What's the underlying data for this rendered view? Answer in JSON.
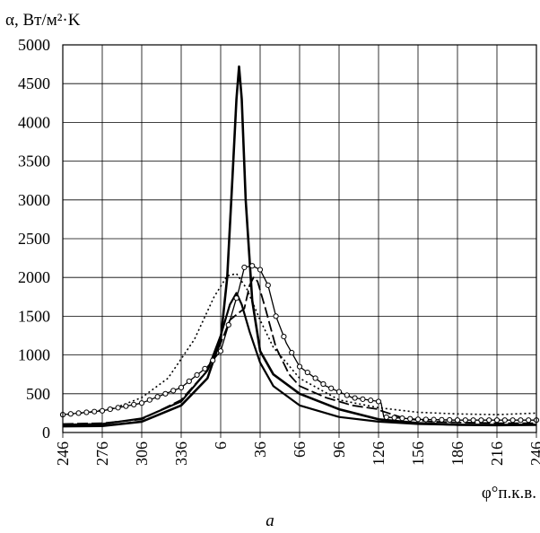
{
  "chart_data": {
    "type": "line",
    "ylabel": "α, Вт/м²·K",
    "xlabel": "φ°п.к.в.",
    "caption": "а",
    "ylim": [
      0,
      5000
    ],
    "yticks": [
      0,
      500,
      1000,
      1500,
      2000,
      2500,
      3000,
      3500,
      4000,
      4500,
      5000
    ],
    "xlim": [
      246,
      606
    ],
    "xticks": [
      {
        "value": 246,
        "label": "246"
      },
      {
        "value": 276,
        "label": "276"
      },
      {
        "value": 306,
        "label": "306"
      },
      {
        "value": 336,
        "label": "336"
      },
      {
        "value": 366,
        "label": "6"
      },
      {
        "value": 396,
        "label": "36"
      },
      {
        "value": 426,
        "label": "66"
      },
      {
        "value": 456,
        "label": "96"
      },
      {
        "value": 486,
        "label": "126"
      },
      {
        "value": 516,
        "label": "156"
      },
      {
        "value": 546,
        "label": "186"
      },
      {
        "value": 576,
        "label": "216"
      },
      {
        "value": 606,
        "label": "246"
      }
    ],
    "grid": true,
    "series": [
      {
        "style": "solid-thick-peak",
        "points": [
          [
            246,
            80
          ],
          [
            276,
            85
          ],
          [
            306,
            140
          ],
          [
            336,
            350
          ],
          [
            356,
            700
          ],
          [
            366,
            1200
          ],
          [
            371,
            2000
          ],
          [
            375,
            3300
          ],
          [
            378,
            4300
          ],
          [
            380,
            4720
          ],
          [
            382,
            4300
          ],
          [
            385,
            3000
          ],
          [
            390,
            1700
          ],
          [
            396,
            1050
          ],
          [
            406,
            750
          ],
          [
            426,
            500
          ],
          [
            456,
            300
          ],
          [
            486,
            170
          ],
          [
            516,
            120
          ],
          [
            546,
            100
          ],
          [
            576,
            95
          ],
          [
            606,
            100
          ]
        ]
      },
      {
        "style": "solid",
        "points": [
          [
            246,
            100
          ],
          [
            276,
            110
          ],
          [
            306,
            180
          ],
          [
            336,
            400
          ],
          [
            356,
            800
          ],
          [
            366,
            1250
          ],
          [
            373,
            1650
          ],
          [
            378,
            1800
          ],
          [
            382,
            1650
          ],
          [
            388,
            1300
          ],
          [
            396,
            900
          ],
          [
            406,
            600
          ],
          [
            426,
            350
          ],
          [
            456,
            200
          ],
          [
            486,
            140
          ],
          [
            516,
            110
          ],
          [
            546,
            100
          ],
          [
            576,
            100
          ],
          [
            606,
            100
          ]
        ]
      },
      {
        "style": "dotted",
        "points": [
          [
            246,
            230
          ],
          [
            266,
            260
          ],
          [
            286,
            320
          ],
          [
            306,
            450
          ],
          [
            326,
            700
          ],
          [
            346,
            1200
          ],
          [
            361,
            1750
          ],
          [
            371,
            2020
          ],
          [
            378,
            2050
          ],
          [
            386,
            1850
          ],
          [
            396,
            1450
          ],
          [
            406,
            1100
          ],
          [
            426,
            700
          ],
          [
            456,
            420
          ],
          [
            486,
            320
          ],
          [
            516,
            260
          ],
          [
            546,
            240
          ],
          [
            576,
            230
          ],
          [
            606,
            250
          ]
        ]
      },
      {
        "style": "long-dash",
        "points": [
          [
            246,
            110
          ],
          [
            276,
            120
          ],
          [
            306,
            170
          ],
          [
            336,
            420
          ],
          [
            356,
            800
          ],
          [
            366,
            1150
          ],
          [
            373,
            1450
          ],
          [
            378,
            1520
          ],
          [
            384,
            1600
          ],
          [
            388,
            1900
          ],
          [
            391,
            2000
          ],
          [
            394,
            1950
          ],
          [
            400,
            1600
          ],
          [
            408,
            1100
          ],
          [
            418,
            750
          ],
          [
            426,
            600
          ],
          [
            446,
            450
          ],
          [
            466,
            350
          ],
          [
            486,
            300
          ],
          [
            488,
            280
          ],
          [
            506,
            180
          ],
          [
            526,
            140
          ],
          [
            546,
            130
          ],
          [
            576,
            120
          ],
          [
            606,
            120
          ]
        ]
      },
      {
        "style": "circle-markers",
        "points": [
          [
            246,
            230
          ],
          [
            276,
            280
          ],
          [
            306,
            380
          ],
          [
            336,
            580
          ],
          [
            356,
            850
          ],
          [
            366,
            1050
          ],
          [
            374,
            1500
          ],
          [
            380,
            1850
          ],
          [
            384,
            2130
          ],
          [
            390,
            2150
          ],
          [
            396,
            2100
          ],
          [
            402,
            1900
          ],
          [
            408,
            1500
          ],
          [
            416,
            1150
          ],
          [
            426,
            850
          ],
          [
            446,
            600
          ],
          [
            466,
            450
          ],
          [
            486,
            400
          ],
          [
            488,
            380
          ],
          [
            490,
            200
          ],
          [
            516,
            170
          ],
          [
            546,
            160
          ],
          [
            576,
            160
          ],
          [
            606,
            160
          ]
        ]
      }
    ]
  }
}
